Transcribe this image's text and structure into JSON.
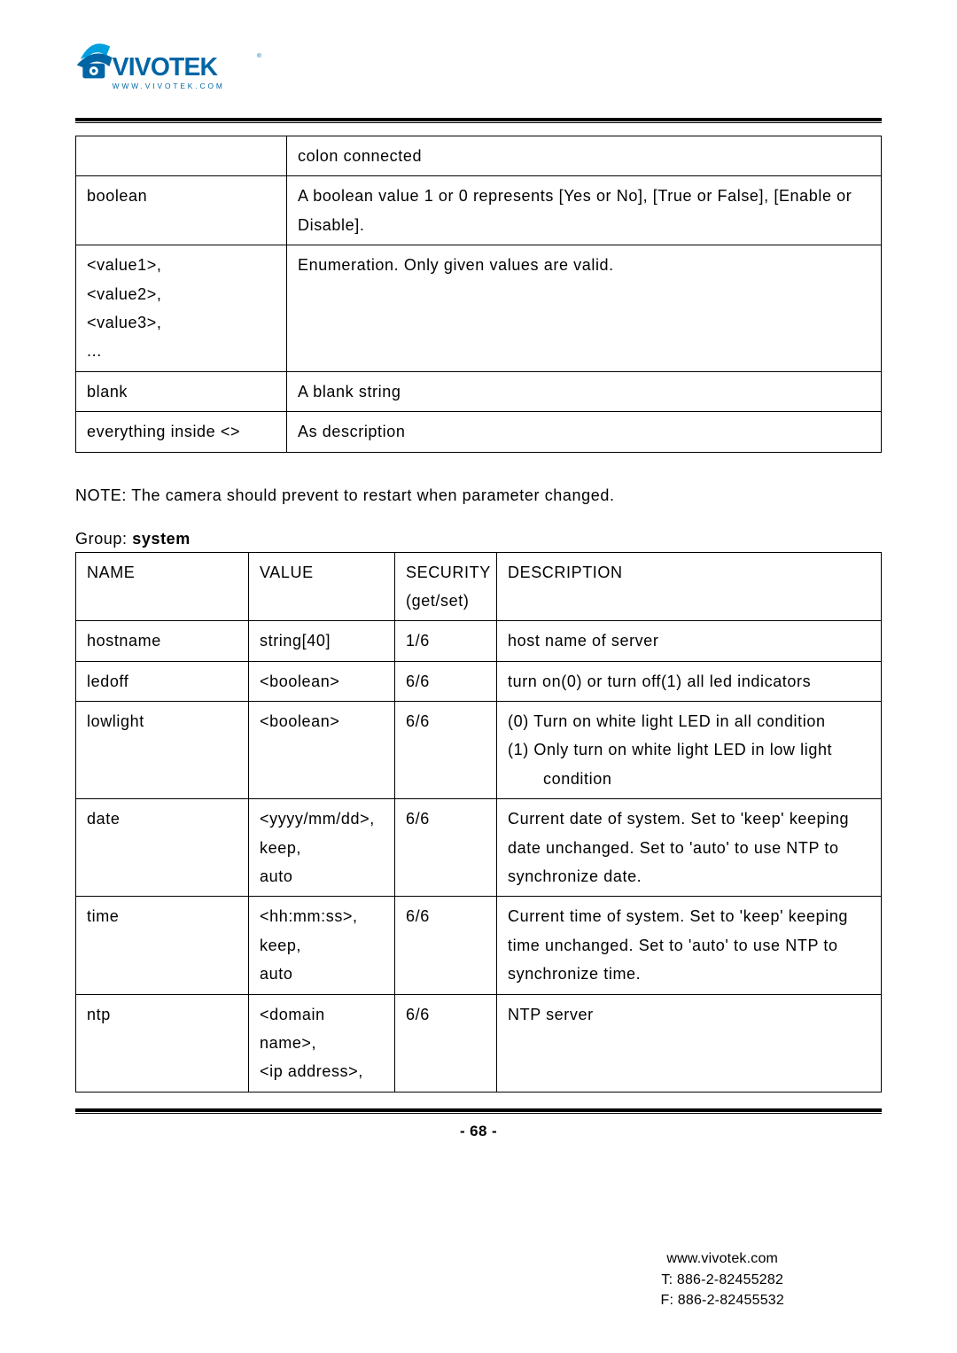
{
  "logo": {
    "main_text": "VIVOTEK",
    "sub_text": "WWW.VIVOTEK.COM",
    "primary_color": "#0065a4",
    "accent_color": "#00a0e0"
  },
  "table1": {
    "rows": [
      {
        "c1": "",
        "c2": "colon connected"
      },
      {
        "c1": "boolean",
        "c2": "A boolean value 1 or 0 represents [Yes or No], [True or False], [Enable or Disable]."
      },
      {
        "c1": "<value1>,\n<value2>,\n<value3>,\n...",
        "c2": "Enumeration. Only given values are valid."
      },
      {
        "c1": "blank",
        "c2": "A blank string"
      },
      {
        "c1": "everything inside <>",
        "c2": "As description"
      }
    ]
  },
  "note_text": "NOTE: The camera should prevent to restart when parameter changed.",
  "group_prefix": "Group: ",
  "group_name": "system",
  "table2": {
    "headers": [
      "NAME",
      "VALUE",
      "SECURITY (get/set)",
      "DESCRIPTION"
    ],
    "rows": [
      {
        "name": "hostname",
        "value": "string[40]",
        "security": "1/6",
        "desc": "host name of server",
        "desc_mode": "plain"
      },
      {
        "name": "ledoff",
        "value": "<boolean>",
        "security": "6/6",
        "desc": "turn on(0) or turn off(1) all led indicators",
        "desc_mode": "justify"
      },
      {
        "name": "lowlight",
        "value": "<boolean>",
        "security": "6/6",
        "desc_lines": [
          "(0)  Turn on white light LED in all condition",
          "(1)  Only turn on white light LED in low light condition"
        ],
        "desc_mode": "list"
      },
      {
        "name": "date",
        "value": "<yyyy/mm/dd>,\nkeep,\nauto",
        "security": "6/6",
        "desc": "Current date of system. Set to 'keep' keeping date unchanged. Set to 'auto' to use NTP to synchronize date.",
        "desc_mode": "justify"
      },
      {
        "name": "time",
        "value": "<hh:mm:ss>,\nkeep,\nauto",
        "security": "6/6",
        "desc": "Current time of system. Set to 'keep' keeping time unchanged. Set to 'auto' to use NTP to synchronize time.",
        "desc_mode": "justify"
      },
      {
        "name": "ntp",
        "value": "<domain name>,\n<ip address>,",
        "security": "6/6",
        "desc": "NTP server",
        "desc_mode": "plain"
      }
    ]
  },
  "page_number": "- 68 -",
  "footer": {
    "url": "www.vivotek.com",
    "tel": "T: 886-2-82455282",
    "fax": "F: 886-2-82455532"
  }
}
